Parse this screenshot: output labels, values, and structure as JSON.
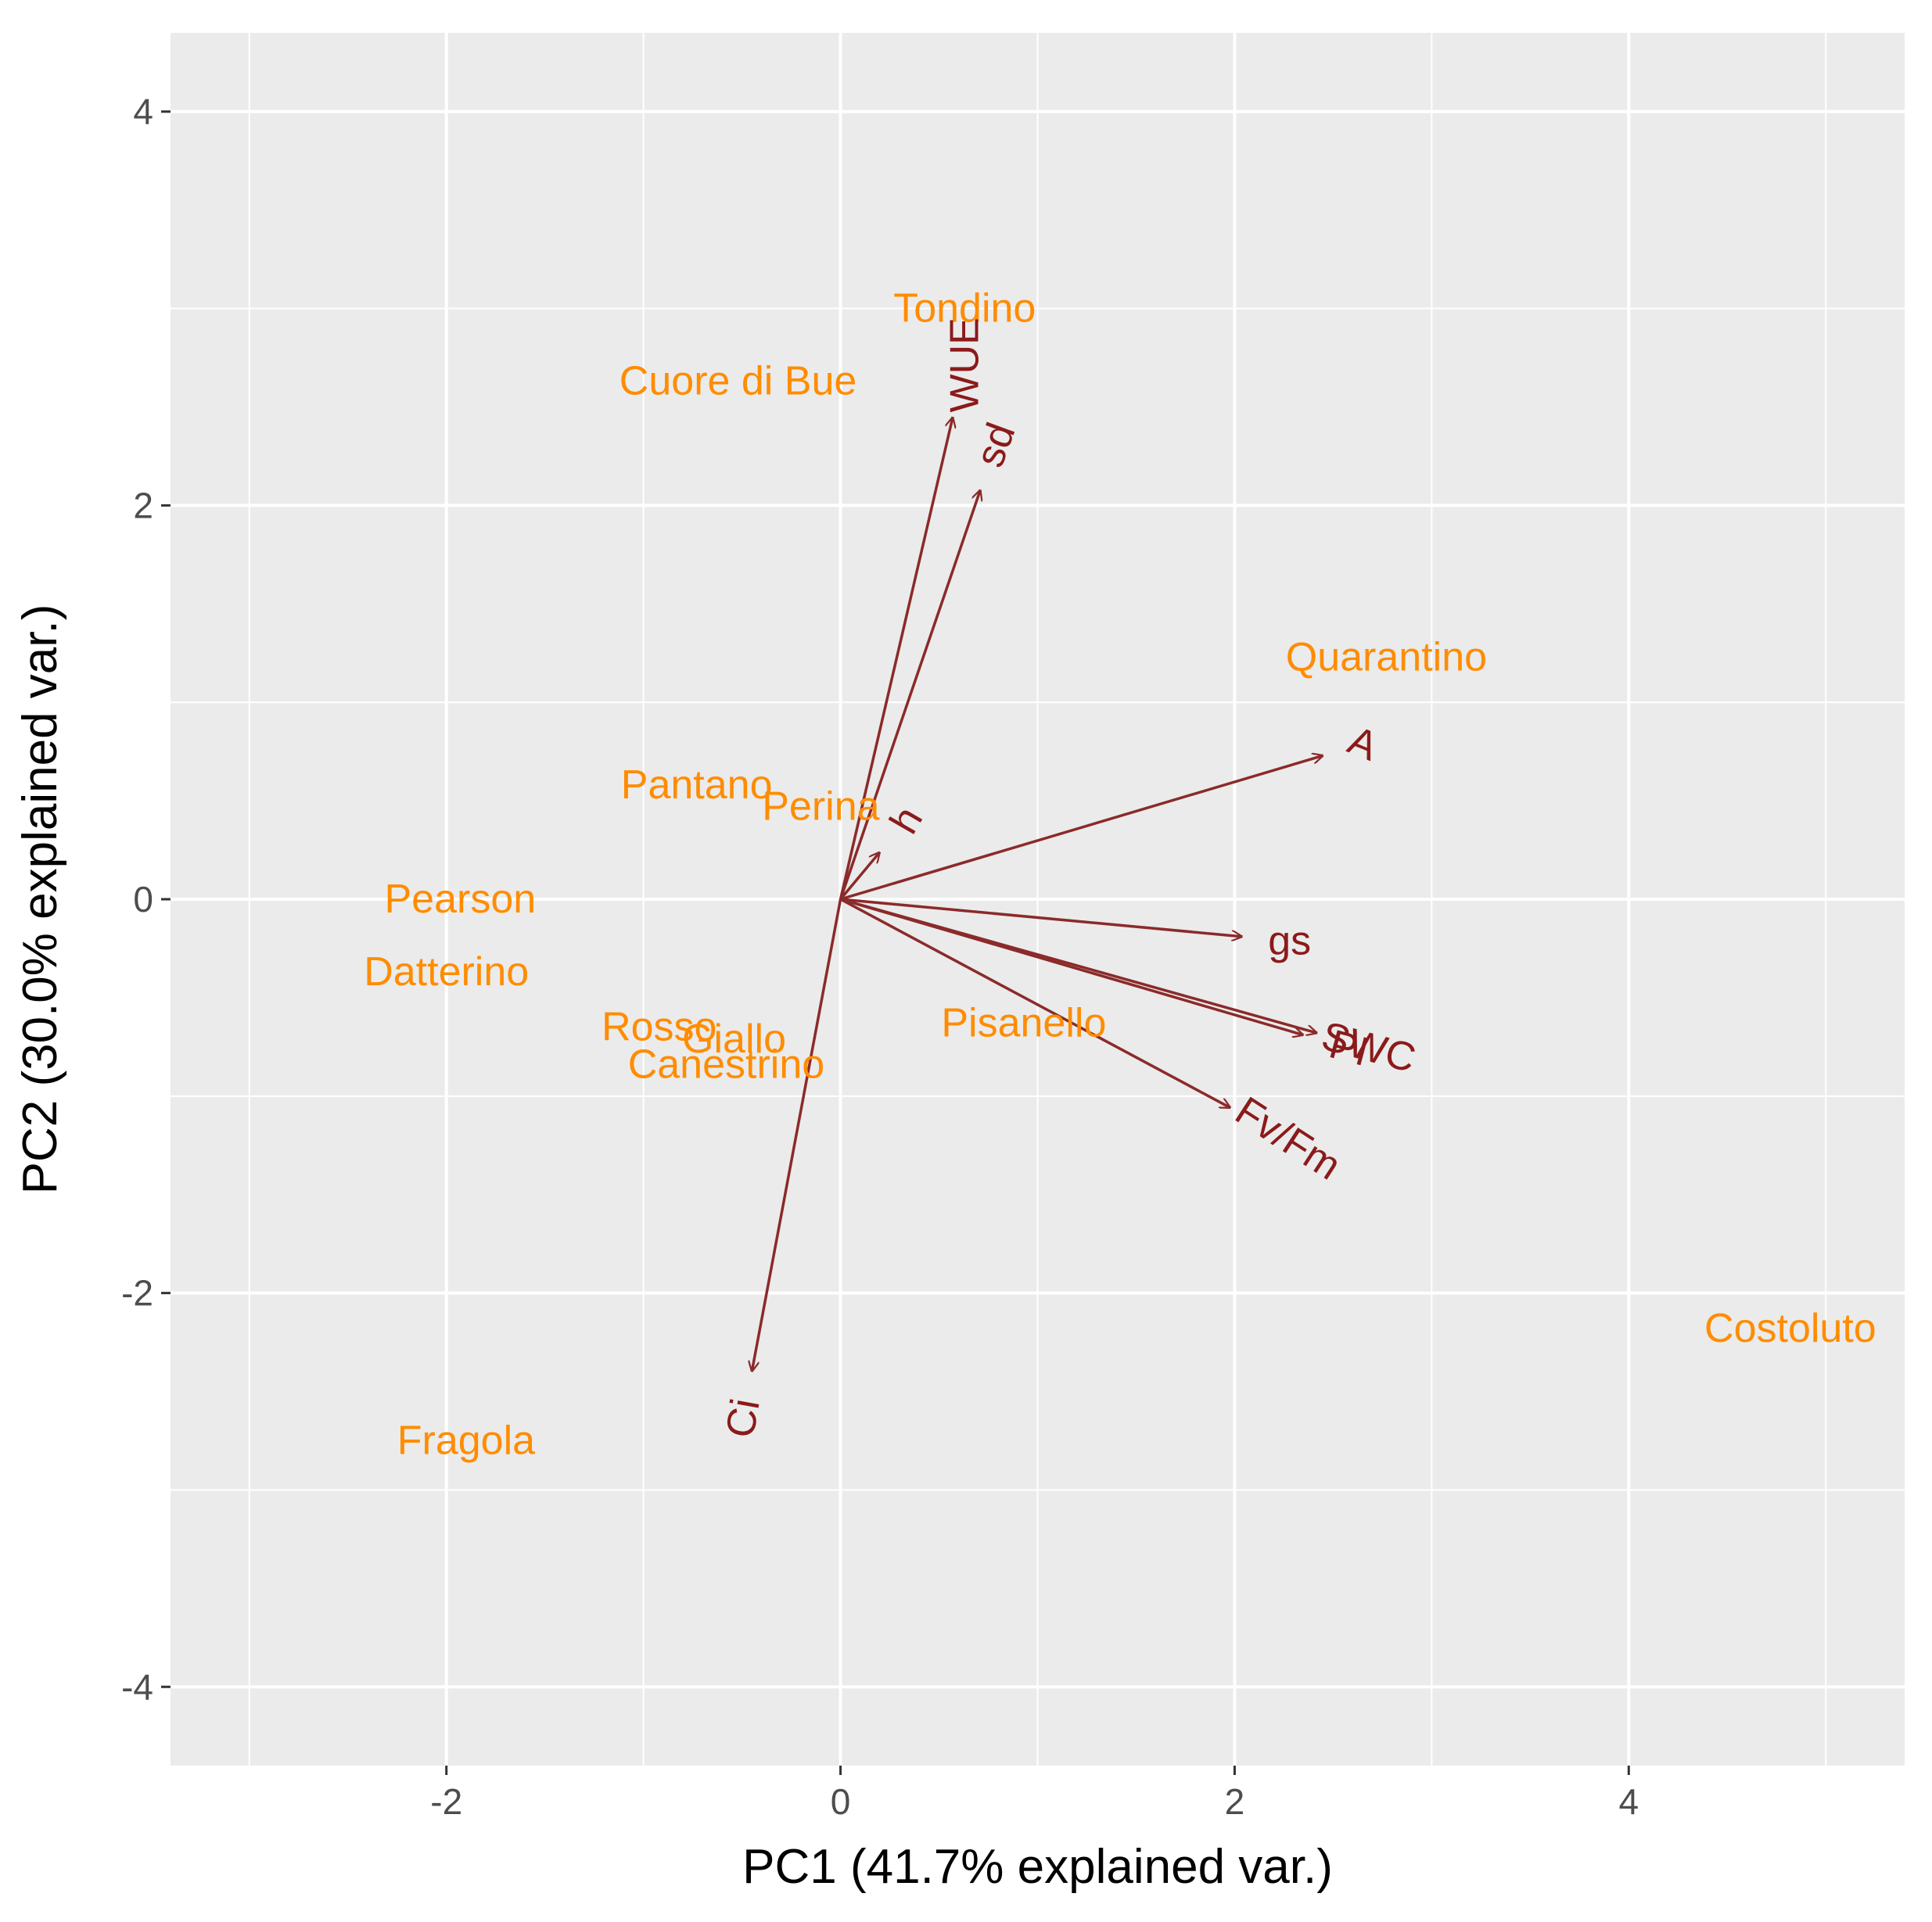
{
  "chart_data": {
    "type": "scatter",
    "subtype": "pca-biplot",
    "xlabel": "PC1 (41.7% explained var.)",
    "ylabel": "PC2 (30.0% explained var.)",
    "xlim": [
      -3.4,
      5.4
    ],
    "ylim": [
      -4.4,
      4.4
    ],
    "xticks": [
      -2,
      0,
      2,
      4
    ],
    "yticks": [
      -4,
      -2,
      0,
      2,
      4
    ],
    "grid": true,
    "observations": {
      "color": "#ff8c00",
      "points": [
        {
          "label": "Tondino",
          "x": 0.63,
          "y": 3.0
        },
        {
          "label": "Cuore di Bue",
          "x": -0.52,
          "y": 2.63
        },
        {
          "label": "Quarantino",
          "x": 2.77,
          "y": 1.23
        },
        {
          "label": "Pantano",
          "x": -0.73,
          "y": 0.58
        },
        {
          "label": "Perina",
          "x": -0.1,
          "y": 0.47
        },
        {
          "label": "Pearson",
          "x": -1.93,
          "y": 0.0
        },
        {
          "label": "Datterino",
          "x": -2.0,
          "y": -0.37
        },
        {
          "label": "Rosso",
          "x": -0.92,
          "y": -0.65
        },
        {
          "label": "Giallo",
          "x": -0.54,
          "y": -0.71
        },
        {
          "label": "Canestrino",
          "x": -0.58,
          "y": -0.84
        },
        {
          "label": "Pisanello",
          "x": 0.93,
          "y": -0.63
        },
        {
          "label": "Costoluto",
          "x": 4.82,
          "y": -2.18
        },
        {
          "label": "Fragola",
          "x": -1.9,
          "y": -2.75
        }
      ]
    },
    "variables": {
      "color": "#8b1a1a",
      "arrows": [
        {
          "label": "WUE",
          "x": 0.57,
          "y": 2.45,
          "rotate": -90
        },
        {
          "label": "sd",
          "x": 0.71,
          "y": 2.08,
          "rotate": -70
        },
        {
          "label": "A",
          "x": 2.45,
          "y": 0.73,
          "rotate": 22
        },
        {
          "label": "h",
          "x": 0.2,
          "y": 0.24,
          "rotate": -60
        },
        {
          "label": "gs",
          "x": 2.04,
          "y": -0.19,
          "rotate": 0
        },
        {
          "label": "PI",
          "x": 2.35,
          "y": -0.69,
          "rotate": 15
        },
        {
          "label": "SWC",
          "x": 2.42,
          "y": -0.68,
          "rotate": 15
        },
        {
          "label": "Fv/Fm",
          "x": 1.98,
          "y": -1.06,
          "rotate": 33
        },
        {
          "label": "Ci",
          "x": -0.45,
          "y": -2.4,
          "rotate": -80
        }
      ]
    }
  }
}
